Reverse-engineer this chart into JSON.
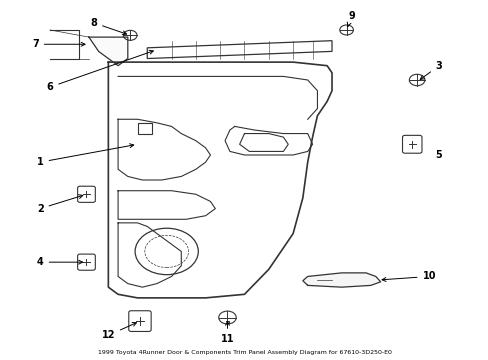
{
  "title": "1999 Toyota 4Runner Door & Components Trim Panel Assembly Diagram for 67610-3D250-E0",
  "bg_color": "#ffffff",
  "line_color": "#333333",
  "text_color": "#000000",
  "fig_width": 4.89,
  "fig_height": 3.6,
  "dpi": 100
}
